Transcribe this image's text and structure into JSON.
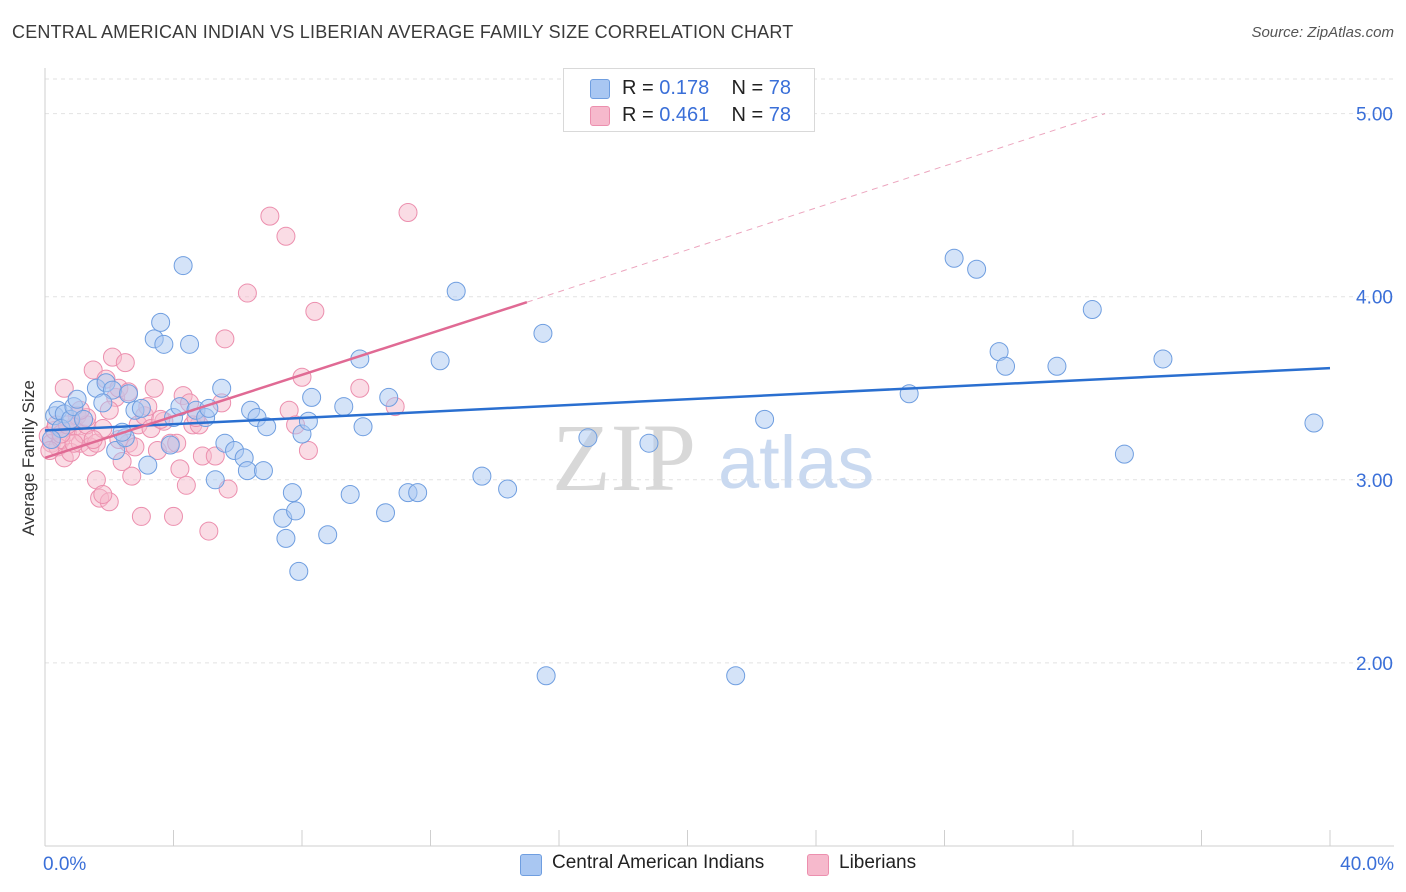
{
  "header": {
    "title": "CENTRAL AMERICAN INDIAN VS LIBERIAN AVERAGE FAMILY SIZE CORRELATION CHART",
    "source": "Source: ZipAtlas.com"
  },
  "legend": {
    "rows": [
      {
        "r_label": "R =",
        "r_value": "0.178",
        "n_label": "N =",
        "n_value": "78"
      },
      {
        "r_label": "R =",
        "r_value": "0.461",
        "n_label": "N =",
        "n_value": "78"
      }
    ]
  },
  "watermark": {
    "zip": "ZIP",
    "atlas": "atlas"
  },
  "colors": {
    "blue_fill": "#a9c7f2",
    "blue_stroke": "#6f9ee0",
    "blue_line": "#2a6fd0",
    "pink_fill": "#f6b9cc",
    "pink_stroke": "#ec8fae",
    "pink_line": "#e06a94",
    "tick_label": "#3a6fd8",
    "grid": "#e2e2e2"
  },
  "chart_data": {
    "type": "scatter",
    "title": "CENTRAL AMERICAN INDIAN VS LIBERIAN AVERAGE FAMILY SIZE CORRELATION CHART",
    "xlabel": "",
    "ylabel": "Average Family Size",
    "xlim": [
      0,
      40
    ],
    "ylim": [
      1.0,
      5.2
    ],
    "x_tick_labels": [
      "0.0%",
      "40.0%"
    ],
    "y_ticks": [
      2.0,
      3.0,
      4.0,
      5.0
    ],
    "y_tick_labels": [
      "2.00",
      "3.00",
      "4.00",
      "5.00"
    ],
    "grid": true,
    "legend_placement": "top-center",
    "series": [
      {
        "name": "Central American Indians",
        "color": "#a9c7f2",
        "points": [
          [
            0.3,
            3.35
          ],
          [
            0.4,
            3.38
          ],
          [
            0.6,
            3.36
          ],
          [
            0.5,
            3.28
          ],
          [
            0.8,
            3.33
          ],
          [
            0.9,
            3.4
          ],
          [
            1.2,
            3.33
          ],
          [
            1.6,
            3.5
          ],
          [
            1.9,
            3.53
          ],
          [
            2.1,
            3.49
          ],
          [
            1.8,
            3.42
          ],
          [
            2.6,
            3.47
          ],
          [
            2.8,
            3.38
          ],
          [
            2.2,
            3.16
          ],
          [
            2.5,
            3.23
          ],
          [
            3.2,
            3.08
          ],
          [
            3.4,
            3.77
          ],
          [
            3.6,
            3.86
          ],
          [
            3.7,
            3.74
          ],
          [
            3.0,
            3.39
          ],
          [
            4.0,
            3.34
          ],
          [
            4.3,
            4.17
          ],
          [
            4.2,
            3.4
          ],
          [
            4.5,
            3.74
          ],
          [
            4.7,
            3.38
          ],
          [
            5.0,
            3.34
          ],
          [
            5.3,
            3.0
          ],
          [
            5.5,
            3.5
          ],
          [
            5.6,
            3.2
          ],
          [
            5.9,
            3.16
          ],
          [
            6.2,
            3.12
          ],
          [
            6.3,
            3.05
          ],
          [
            6.4,
            3.38
          ],
          [
            6.6,
            3.34
          ],
          [
            6.9,
            3.29
          ],
          [
            7.4,
            2.79
          ],
          [
            7.5,
            2.68
          ],
          [
            7.7,
            2.93
          ],
          [
            7.8,
            2.83
          ],
          [
            7.9,
            2.5
          ],
          [
            8.0,
            3.25
          ],
          [
            8.2,
            3.32
          ],
          [
            8.3,
            3.45
          ],
          [
            8.8,
            2.7
          ],
          [
            9.3,
            3.4
          ],
          [
            9.5,
            2.92
          ],
          [
            9.9,
            3.29
          ],
          [
            9.8,
            3.66
          ],
          [
            10.6,
            2.82
          ],
          [
            10.7,
            3.45
          ],
          [
            11.3,
            2.93
          ],
          [
            11.6,
            2.93
          ],
          [
            12.3,
            3.65
          ],
          [
            12.8,
            4.03
          ],
          [
            13.6,
            3.02
          ],
          [
            14.4,
            2.95
          ],
          [
            15.5,
            3.8
          ],
          [
            15.6,
            1.93
          ],
          [
            16.9,
            3.23
          ],
          [
            18.8,
            3.2
          ],
          [
            21.5,
            1.93
          ],
          [
            22.4,
            3.33
          ],
          [
            26.9,
            3.47
          ],
          [
            28.3,
            4.21
          ],
          [
            29.0,
            4.15
          ],
          [
            29.7,
            3.7
          ],
          [
            29.9,
            3.62
          ],
          [
            31.5,
            3.62
          ],
          [
            32.6,
            3.93
          ],
          [
            33.6,
            3.14
          ],
          [
            34.8,
            3.66
          ],
          [
            39.5,
            3.31
          ],
          [
            0.2,
            3.22
          ],
          [
            1.0,
            3.44
          ],
          [
            2.4,
            3.26
          ],
          [
            3.9,
            3.19
          ],
          [
            5.1,
            3.39
          ],
          [
            6.8,
            3.05
          ]
        ],
        "trendline": {
          "x": [
            0,
            40
          ],
          "y": [
            3.27,
            3.61
          ]
        }
      },
      {
        "name": "Liberians",
        "color": "#f6b9cc",
        "points": [
          [
            0.1,
            3.24
          ],
          [
            0.2,
            3.2
          ],
          [
            0.3,
            3.27
          ],
          [
            0.4,
            3.18
          ],
          [
            0.5,
            3.22
          ],
          [
            0.6,
            3.12
          ],
          [
            0.7,
            3.26
          ],
          [
            0.8,
            3.15
          ],
          [
            0.9,
            3.29
          ],
          [
            1.0,
            3.35
          ],
          [
            1.1,
            3.2
          ],
          [
            1.2,
            3.25
          ],
          [
            1.3,
            3.3
          ],
          [
            1.4,
            3.18
          ],
          [
            1.5,
            3.6
          ],
          [
            1.6,
            3.2
          ],
          [
            1.7,
            2.9
          ],
          [
            1.8,
            3.28
          ],
          [
            1.9,
            3.55
          ],
          [
            2.0,
            2.88
          ],
          [
            2.1,
            3.67
          ],
          [
            2.2,
            3.45
          ],
          [
            2.3,
            3.5
          ],
          [
            2.4,
            3.1
          ],
          [
            2.5,
            3.64
          ],
          [
            2.6,
            3.2
          ],
          [
            2.8,
            3.18
          ],
          [
            2.9,
            3.3
          ],
          [
            3.0,
            2.8
          ],
          [
            3.1,
            3.35
          ],
          [
            3.3,
            3.28
          ],
          [
            3.4,
            3.5
          ],
          [
            3.5,
            3.16
          ],
          [
            3.7,
            3.32
          ],
          [
            3.9,
            3.2
          ],
          [
            4.0,
            2.8
          ],
          [
            4.2,
            3.06
          ],
          [
            4.3,
            3.46
          ],
          [
            4.4,
            2.97
          ],
          [
            4.5,
            3.42
          ],
          [
            4.6,
            3.3
          ],
          [
            4.8,
            3.3
          ],
          [
            4.9,
            3.13
          ],
          [
            5.1,
            2.72
          ],
          [
            5.3,
            3.13
          ],
          [
            5.5,
            3.42
          ],
          [
            5.6,
            3.77
          ],
          [
            5.7,
            2.95
          ],
          [
            6.3,
            4.02
          ],
          [
            7.0,
            4.44
          ],
          [
            7.5,
            4.33
          ],
          [
            7.6,
            3.38
          ],
          [
            7.8,
            3.3
          ],
          [
            8.0,
            3.56
          ],
          [
            8.2,
            3.16
          ],
          [
            8.4,
            3.92
          ],
          [
            9.8,
            3.5
          ],
          [
            10.9,
            3.4
          ],
          [
            11.3,
            4.46
          ],
          [
            1.6,
            3.0
          ],
          [
            0.6,
            3.5
          ],
          [
            1.3,
            3.34
          ],
          [
            2.7,
            3.02
          ],
          [
            0.9,
            3.2
          ],
          [
            0.15,
            3.16
          ],
          [
            0.35,
            3.3
          ],
          [
            1.8,
            2.92
          ],
          [
            2.0,
            3.38
          ],
          [
            3.6,
            3.33
          ],
          [
            4.1,
            3.2
          ],
          [
            1.1,
            3.38
          ],
          [
            2.3,
            3.22
          ],
          [
            0.5,
            3.25
          ],
          [
            1.5,
            3.22
          ],
          [
            3.2,
            3.4
          ],
          [
            4.7,
            3.34
          ],
          [
            0.7,
            3.3
          ],
          [
            2.6,
            3.48
          ]
        ],
        "trendline": {
          "x": [
            0,
            15.0
          ],
          "y": [
            3.12,
            3.97
          ]
        },
        "trendline_extension": {
          "x": [
            15.0,
            33.0
          ],
          "y": [
            3.97,
            5.0
          ]
        }
      }
    ]
  },
  "bottom_legend": {
    "items": [
      {
        "label": "Central American Indians"
      },
      {
        "label": "Liberians"
      }
    ]
  }
}
